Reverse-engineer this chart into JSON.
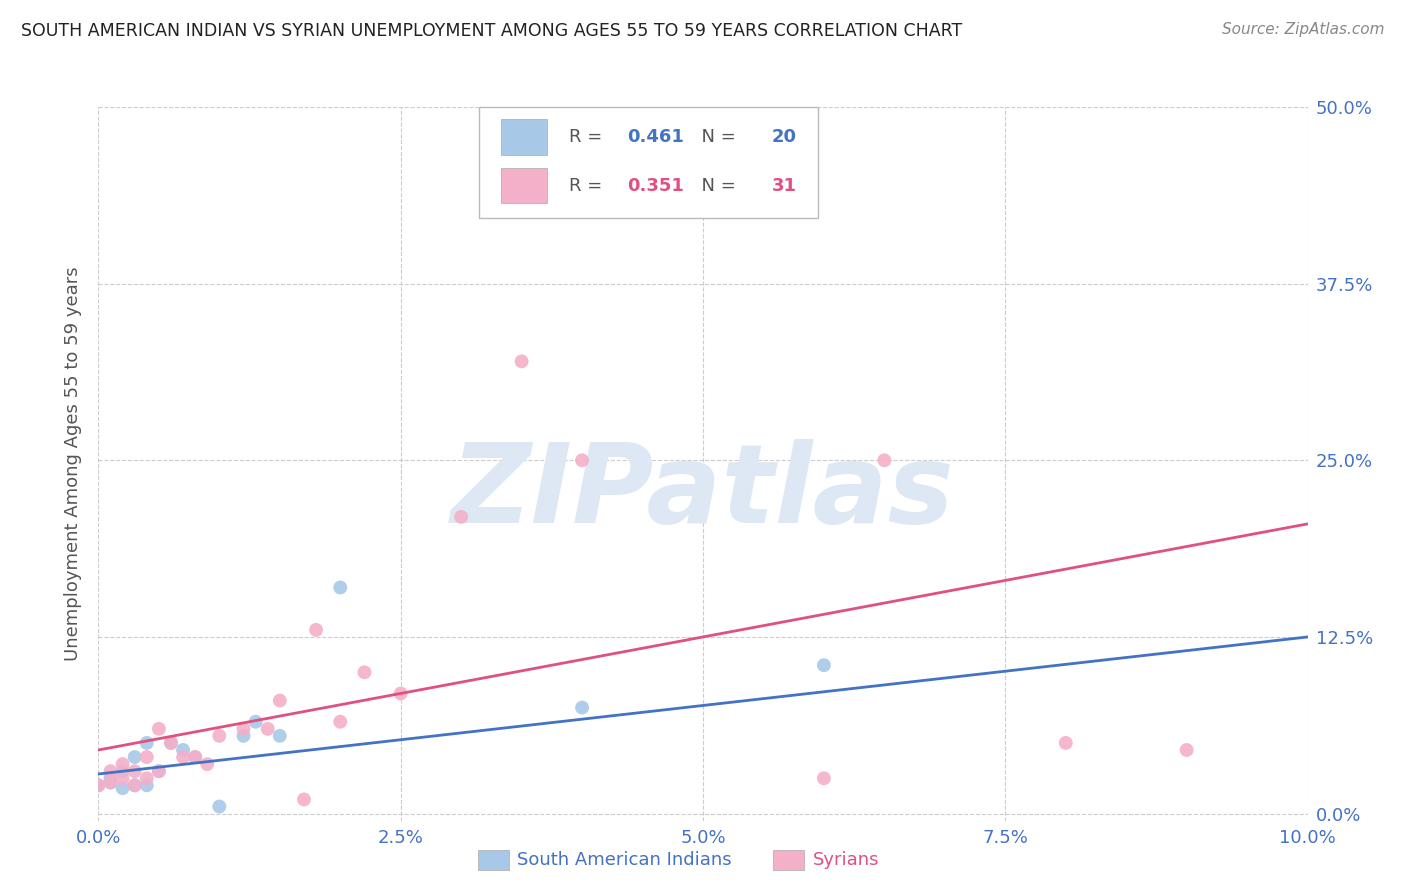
{
  "title": "SOUTH AMERICAN INDIAN VS SYRIAN UNEMPLOYMENT AMONG AGES 55 TO 59 YEARS CORRELATION CHART",
  "source": "Source: ZipAtlas.com",
  "ylabel": "Unemployment Among Ages 55 to 59 years",
  "xlim": [
    0.0,
    0.1
  ],
  "ylim": [
    -0.005,
    0.5
  ],
  "blue_R": 0.461,
  "blue_N": 20,
  "pink_R": 0.351,
  "pink_N": 31,
  "blue_label": "South American Indians",
  "pink_label": "Syrians",
  "blue_color": "#a8c8e8",
  "pink_color": "#f4b0c8",
  "blue_line_color": "#4472c4",
  "pink_line_color": "#e05080",
  "axis_label_color": "#4472c4",
  "watermark_color": "#dde8f4",
  "background_color": "#ffffff",
  "grid_color": "#cccccc",
  "blue_points_x": [
    0.0,
    0.001,
    0.001,
    0.002,
    0.002,
    0.003,
    0.003,
    0.004,
    0.004,
    0.005,
    0.006,
    0.007,
    0.008,
    0.01,
    0.012,
    0.013,
    0.015,
    0.02,
    0.04,
    0.06
  ],
  "blue_points_y": [
    0.02,
    0.022,
    0.025,
    0.018,
    0.03,
    0.02,
    0.04,
    0.02,
    0.05,
    0.03,
    0.05,
    0.045,
    0.04,
    0.005,
    0.055,
    0.065,
    0.055,
    0.16,
    0.075,
    0.105
  ],
  "pink_points_x": [
    0.0,
    0.001,
    0.001,
    0.002,
    0.002,
    0.003,
    0.003,
    0.004,
    0.004,
    0.005,
    0.005,
    0.006,
    0.007,
    0.008,
    0.009,
    0.01,
    0.012,
    0.014,
    0.015,
    0.017,
    0.018,
    0.02,
    0.022,
    0.025,
    0.03,
    0.035,
    0.04,
    0.06,
    0.065,
    0.08,
    0.09
  ],
  "pink_points_y": [
    0.02,
    0.022,
    0.03,
    0.025,
    0.035,
    0.02,
    0.03,
    0.025,
    0.04,
    0.03,
    0.06,
    0.05,
    0.04,
    0.04,
    0.035,
    0.055,
    0.06,
    0.06,
    0.08,
    0.01,
    0.13,
    0.065,
    0.1,
    0.085,
    0.21,
    0.32,
    0.25,
    0.025,
    0.25,
    0.05,
    0.045
  ],
  "x_tick_vals": [
    0.0,
    0.025,
    0.05,
    0.075,
    0.1
  ],
  "x_tick_labels": [
    "0.0%",
    "2.5%",
    "5.0%",
    "7.5%",
    "10.0%"
  ],
  "y_tick_vals": [
    0.0,
    0.125,
    0.25,
    0.375,
    0.5
  ],
  "y_tick_labels": [
    "0.0%",
    "12.5%",
    "25.0%",
    "37.5%",
    "50.0%"
  ]
}
